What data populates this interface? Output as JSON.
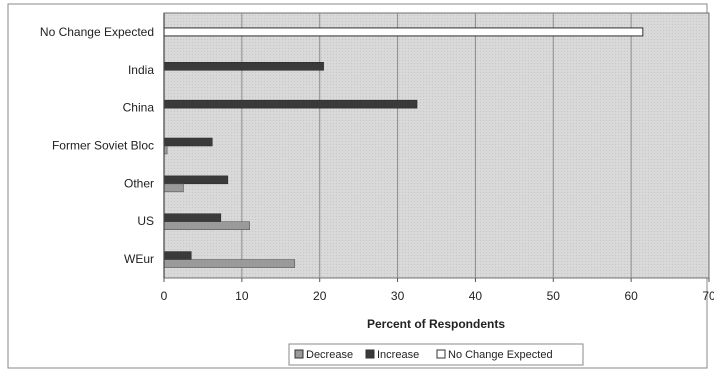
{
  "chart_data": {
    "type": "bar",
    "orientation": "horizontal",
    "categories": [
      "No Change Expected",
      "India",
      "China",
      "Former Soviet Bloc",
      "Other",
      "US",
      "WEur"
    ],
    "series": [
      {
        "name": "Decrease",
        "values": [
          null,
          null,
          null,
          0.4,
          2.5,
          11.0,
          16.8
        ],
        "color": "#9a9a9a"
      },
      {
        "name": "Increase",
        "values": [
          null,
          20.5,
          32.5,
          6.2,
          8.2,
          7.3,
          3.5
        ],
        "color": "#3a3a3a"
      },
      {
        "name": "No Change Expected",
        "values": [
          61.5,
          null,
          null,
          null,
          null,
          null,
          null
        ],
        "color": "#ffffff"
      }
    ],
    "xlabel": "Percent of Respondents",
    "xlim": [
      0,
      70
    ],
    "xticks": [
      "0",
      "10",
      "20",
      "30",
      "40",
      "50",
      "60",
      "70"
    ],
    "grid": true,
    "legend_position": "bottom",
    "legend_entries": [
      "Decrease",
      "Increase",
      "No Change Expected"
    ]
  }
}
